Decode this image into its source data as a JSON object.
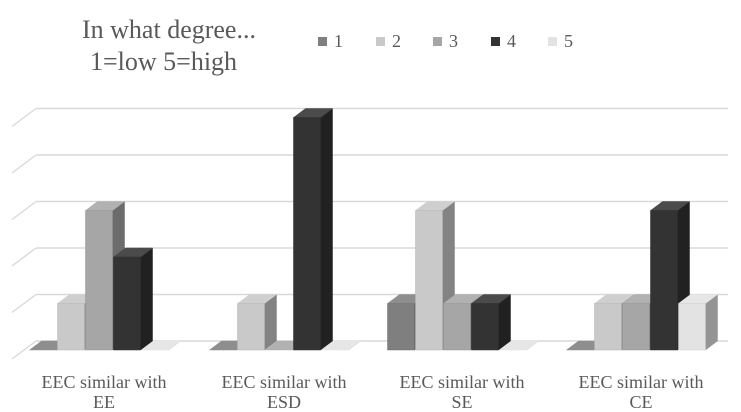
{
  "chart_data": {
    "type": "bar",
    "style": "3d-clustered-column",
    "title_lines": [
      "In what degree...",
      "1=low   5=high"
    ],
    "categories": [
      [
        "EEC similar with",
        "EE"
      ],
      [
        "EEC similar with",
        "ESD"
      ],
      [
        "EEC similar with",
        "SE"
      ],
      [
        "EEC similar with",
        "CE"
      ]
    ],
    "series": [
      {
        "name": "1",
        "color": "#7f7f7f",
        "values": [
          0,
          0,
          1,
          0
        ]
      },
      {
        "name": "2",
        "color": "#c9c9c9",
        "values": [
          1,
          1,
          3,
          1
        ]
      },
      {
        "name": "3",
        "color": "#a6a6a6",
        "values": [
          3,
          0,
          1,
          1
        ]
      },
      {
        "name": "4",
        "color": "#333333",
        "values": [
          2,
          5,
          1,
          3
        ]
      },
      {
        "name": "5",
        "color": "#e3e3e3",
        "values": [
          0,
          0,
          0,
          1
        ]
      }
    ],
    "ylim": [
      0,
      5
    ],
    "grid": true,
    "legend_position": "top-right",
    "xlabel": "",
    "ylabel": ""
  }
}
